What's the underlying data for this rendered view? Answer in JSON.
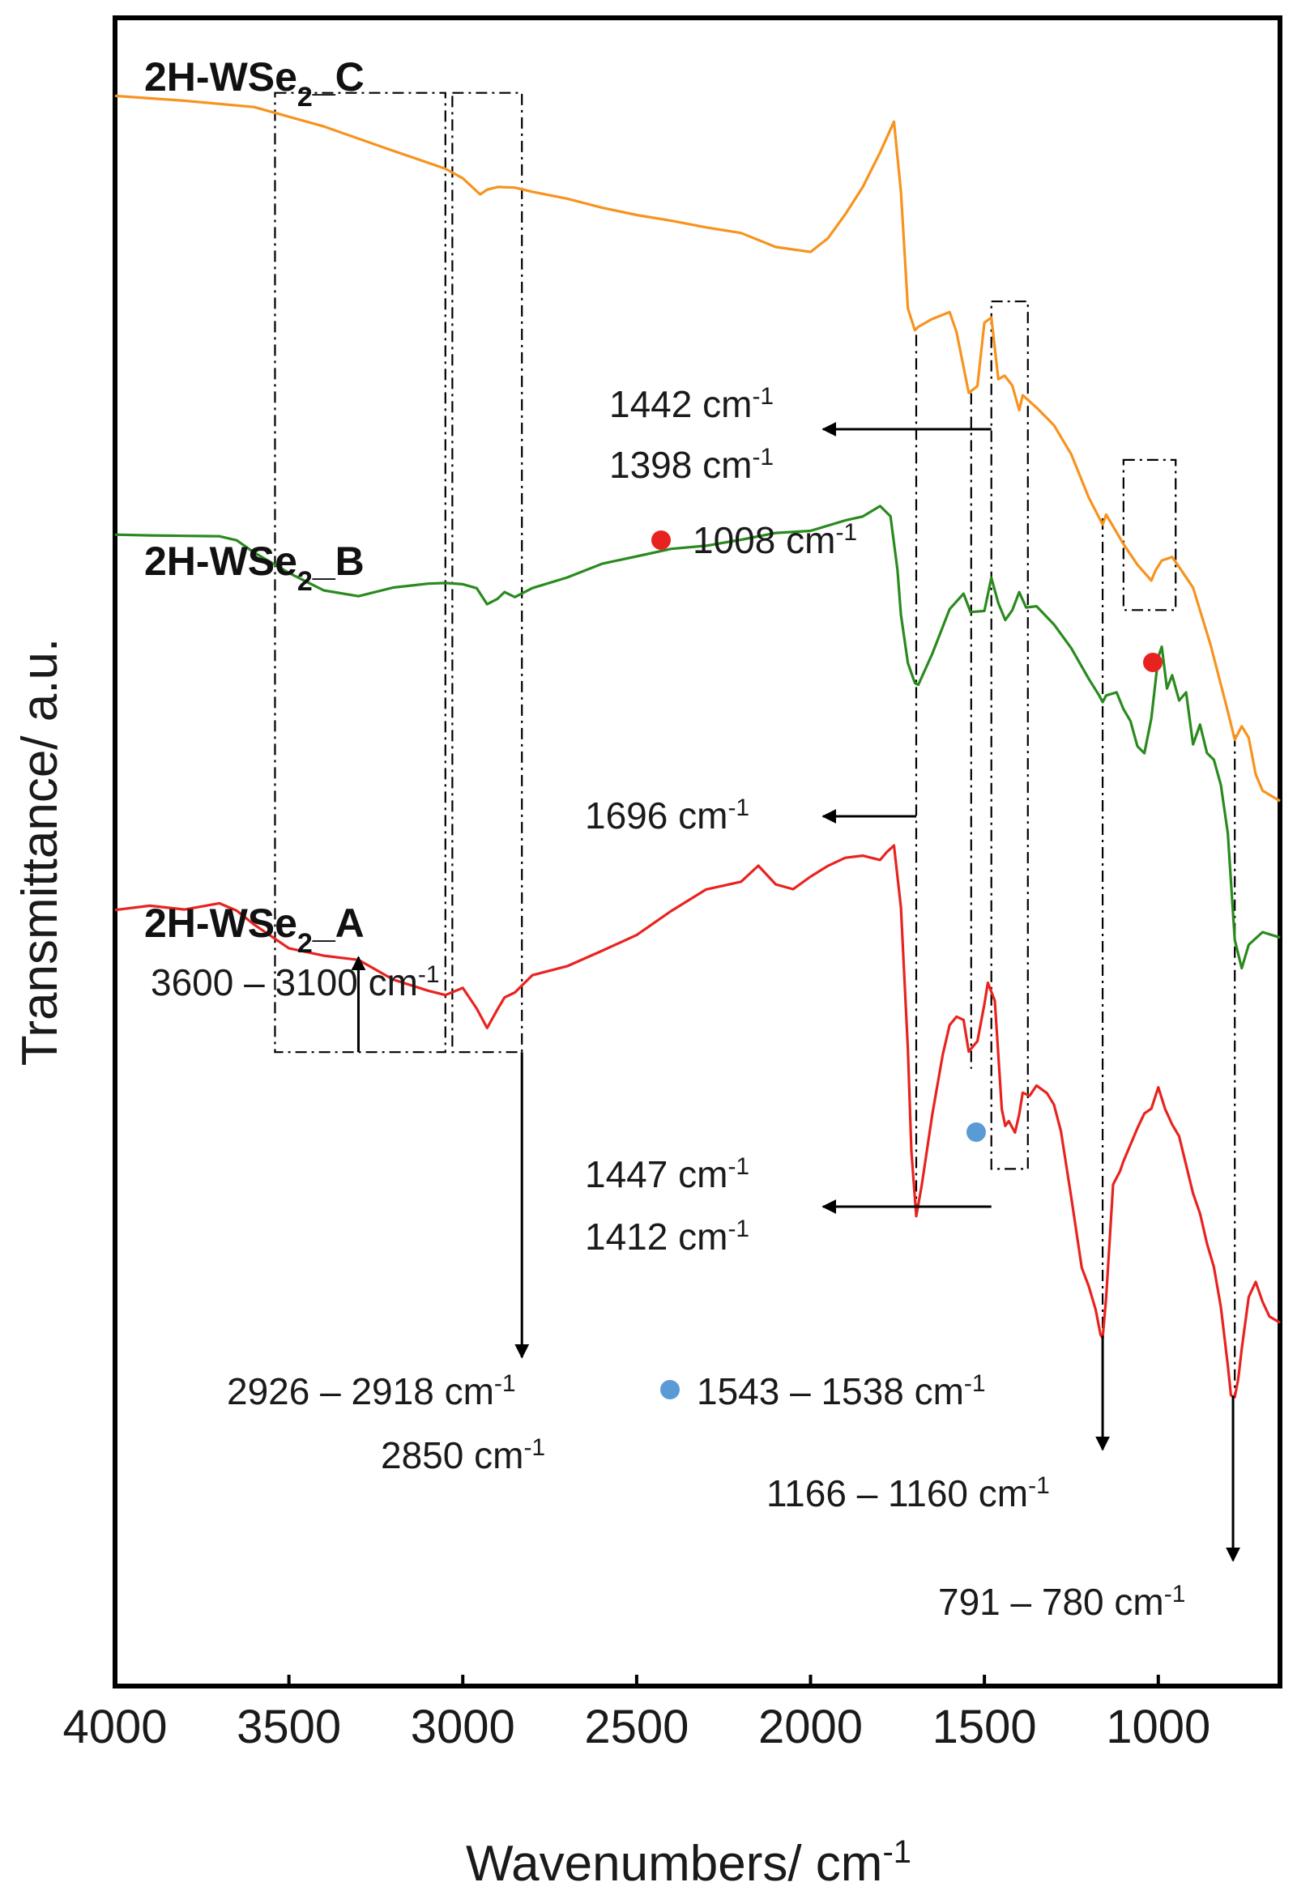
{
  "chart_data": {
    "type": "line",
    "title": "",
    "xlabel": "Wavenumbers/ cm",
    "xlabel_sup": "-1",
    "ylabel": "Transmittance/ a.u.",
    "xlim": [
      4000,
      650
    ],
    "ylim": [
      0,
      100
    ],
    "x_ticks": [
      4000,
      3500,
      3000,
      2500,
      2000,
      1500,
      1000
    ],
    "x_tick_labels": [
      "4000",
      "3500",
      "3000",
      "2500",
      "2000",
      "1500",
      "1000"
    ],
    "grid": false,
    "colors": {
      "C": "#f7931e",
      "B": "#2a8a1e",
      "A": "#e8231f",
      "mark_red": "#e8231f",
      "mark_blue": "#5b9bd5",
      "axis": "#000000"
    },
    "series": [
      {
        "name": "2H-WSe2_C",
        "label_main": "2H-WSe",
        "label_sub": "2",
        "label_tail": "_C",
        "color": "#f7931e",
        "x": [
          4000,
          3800,
          3600,
          3400,
          3200,
          3050,
          3000,
          2950,
          2930,
          2900,
          2850,
          2800,
          2700,
          2600,
          2500,
          2400,
          2300,
          2200,
          2100,
          2000,
          1950,
          1900,
          1850,
          1800,
          1760,
          1740,
          1720,
          1700,
          1690,
          1650,
          1600,
          1580,
          1545,
          1520,
          1500,
          1480,
          1460,
          1442,
          1420,
          1400,
          1390,
          1350,
          1300,
          1250,
          1200,
          1160,
          1150,
          1100,
          1060,
          1020,
          1008,
          990,
          960,
          940,
          900,
          850,
          800,
          780,
          760,
          740,
          720,
          700,
          650
        ],
        "y": [
          95.4,
          95.1,
          94.7,
          93.5,
          92.0,
          90.9,
          90.3,
          89.4,
          89.7,
          89.9,
          89.9,
          89.6,
          89.1,
          88.7,
          88.1,
          87.9,
          87.4,
          87.1,
          86.3,
          85.9,
          86.8,
          88.3,
          89.9,
          91.9,
          93.7,
          89.5,
          82.5,
          81.2,
          81.4,
          81.9,
          82.4,
          81.2,
          77.6,
          78.0,
          81.8,
          82.1,
          78.4,
          78.6,
          78.0,
          76.5,
          77.4,
          76.6,
          75.5,
          73.8,
          71.3,
          69.7,
          70.3,
          68.5,
          67.2,
          66.2,
          66.8,
          67.4,
          67.6,
          67.0,
          65.8,
          62.5,
          58.5,
          56.8,
          57.6,
          56.9,
          54.7,
          53.7,
          53.0
        ]
      },
      {
        "name": "2H-WSe2_B",
        "label_main": "2H-WSe",
        "label_sub": "2",
        "label_tail": "_B",
        "color": "#2a8a1e",
        "x": [
          4000,
          3900,
          3800,
          3700,
          3650,
          3600,
          3500,
          3400,
          3300,
          3200,
          3100,
          3050,
          3000,
          2960,
          2930,
          2900,
          2880,
          2850,
          2800,
          2700,
          2600,
          2500,
          2400,
          2300,
          2200,
          2100,
          2000,
          1900,
          1850,
          1800,
          1770,
          1750,
          1740,
          1720,
          1700,
          1690,
          1650,
          1600,
          1560,
          1540,
          1500,
          1480,
          1460,
          1440,
          1420,
          1400,
          1380,
          1350,
          1300,
          1250,
          1200,
          1170,
          1160,
          1150,
          1120,
          1100,
          1080,
          1060,
          1040,
          1020,
          1000,
          990,
          975,
          960,
          940,
          920,
          900,
          880,
          860,
          840,
          820,
          800,
          780,
          760,
          740,
          700,
          650
        ],
        "y": [
          69.1,
          68.9,
          69.0,
          68.9,
          68.6,
          67.9,
          66.8,
          65.6,
          65.4,
          65.8,
          66.1,
          66.2,
          66.1,
          65.8,
          64.8,
          65.1,
          65.5,
          65.2,
          65.8,
          66.5,
          67.2,
          67.8,
          68.1,
          68.4,
          68.7,
          69.1,
          69.3,
          69.8,
          70.1,
          70.8,
          70.2,
          67.0,
          64.3,
          61.4,
          60.2,
          60.1,
          61.9,
          64.5,
          65.4,
          64.3,
          64.4,
          66.4,
          64.9,
          63.9,
          64.5,
          65.6,
          64.7,
          64.8,
          63.7,
          62.2,
          60.3,
          59.3,
          58.9,
          59.3,
          59.5,
          58.5,
          57.8,
          56.3,
          55.9,
          58.0,
          61.7,
          62.3,
          59.8,
          60.6,
          59.1,
          59.6,
          56.5,
          57.7,
          56.0,
          55.6,
          54.1,
          51.2,
          44.8,
          43.1,
          44.5,
          45.2,
          44.8
        ]
      },
      {
        "name": "2H-WSe2_A",
        "label_main": "2H-WSe",
        "label_sub": "2",
        "label_tail": "_A",
        "color": "#e8231f",
        "x": [
          4000,
          3900,
          3800,
          3700,
          3650,
          3600,
          3500,
          3400,
          3300,
          3200,
          3100,
          3050,
          3000,
          2960,
          2930,
          2900,
          2880,
          2850,
          2800,
          2700,
          2600,
          2500,
          2400,
          2300,
          2200,
          2150,
          2100,
          2050,
          2000,
          1950,
          1900,
          1850,
          1800,
          1780,
          1760,
          1740,
          1720,
          1710,
          1696,
          1680,
          1650,
          1620,
          1600,
          1580,
          1560,
          1545,
          1520,
          1500,
          1490,
          1470,
          1450,
          1440,
          1430,
          1412,
          1400,
          1390,
          1370,
          1350,
          1320,
          1300,
          1280,
          1250,
          1220,
          1200,
          1180,
          1166,
          1160,
          1150,
          1130,
          1110,
          1100,
          1080,
          1060,
          1040,
          1020,
          1000,
          980,
          960,
          940,
          920,
          900,
          880,
          860,
          840,
          820,
          800,
          791,
          780,
          770,
          760,
          740,
          720,
          700,
          680,
          650
        ],
        "y": [
          46.6,
          46.7,
          46.6,
          46.9,
          46.4,
          45.6,
          44.3,
          43.7,
          43.6,
          42.3,
          41.7,
          41.5,
          41.9,
          40.6,
          39.4,
          40.5,
          41.2,
          41.5,
          42.6,
          43.2,
          44.0,
          45.1,
          46.4,
          47.8,
          48.2,
          49.1,
          48.0,
          47.8,
          48.6,
          49.2,
          49.6,
          49.7,
          49.5,
          50.0,
          50.4,
          46.7,
          38.2,
          32.1,
          28.2,
          30.1,
          34.3,
          37.9,
          39.7,
          40.2,
          40.0,
          38.1,
          38.7,
          40.9,
          42.2,
          41.1,
          34.6,
          33.6,
          33.9,
          33.2,
          34.3,
          35.6,
          35.4,
          36.0,
          35.5,
          34.8,
          33.2,
          29.2,
          25.0,
          23.9,
          22.5,
          21.0,
          20.8,
          23.2,
          30.0,
          30.8,
          31.4,
          32.4,
          33.4,
          34.3,
          34.6,
          35.9,
          34.6,
          33.7,
          33.0,
          31.3,
          29.6,
          28.4,
          26.6,
          25.2,
          22.8,
          19.3,
          17.5,
          17.4,
          18.5,
          20.3,
          23.4,
          24.3,
          23.1,
          22.2,
          21.8
        ]
      }
    ],
    "annotations": [
      {
        "id": "a3600",
        "text": "3600 – 3100 cm",
        "sup": "-1",
        "marker": ""
      },
      {
        "id": "a2926",
        "text": "2926 – 2918 cm",
        "sup": "-1",
        "marker": ""
      },
      {
        "id": "a2850",
        "text": "2850 cm",
        "sup": "-1",
        "marker": ""
      },
      {
        "id": "a1442",
        "text": "1442 cm",
        "sup": "-1",
        "marker": ""
      },
      {
        "id": "a1398",
        "text": "1398 cm",
        "sup": "-1",
        "marker": ""
      },
      {
        "id": "a1008",
        "text": "1008 cm",
        "sup": "-1",
        "marker": "red"
      },
      {
        "id": "a1696",
        "text": "1696 cm",
        "sup": "-1",
        "marker": ""
      },
      {
        "id": "a1447",
        "text": "1447 cm",
        "sup": "-1",
        "marker": ""
      },
      {
        "id": "a1412",
        "text": "1412 cm",
        "sup": "-1",
        "marker": ""
      },
      {
        "id": "a1543",
        "text": "1543 – 1538 cm",
        "sup": "-1",
        "marker": "blue"
      },
      {
        "id": "a1166",
        "text": "1166 – 1160 cm",
        "sup": "-1",
        "marker": ""
      },
      {
        "id": "a791",
        "text": "791 – 780 cm",
        "sup": "-1",
        "marker": ""
      }
    ],
    "highlight_regions": [
      {
        "id": "r3600",
        "x_range": [
          3540,
          3050
        ],
        "y_range": [
          38,
          95.5
        ]
      },
      {
        "id": "r2926",
        "x_range": [
          3030,
          2830
        ],
        "y_range": [
          38,
          95.5
        ]
      },
      {
        "id": "r1447",
        "x_range": [
          1480,
          1375
        ],
        "y_range": [
          31,
          83
        ]
      },
      {
        "id": "r1008",
        "x_range": [
          1100,
          950
        ],
        "y_range": [
          64.5,
          73.5
        ]
      }
    ],
    "guide_lines": [
      {
        "id": "g1696",
        "x": 1696,
        "y_range": [
          28,
          81
        ]
      },
      {
        "id": "g1538",
        "x": 1538,
        "y_range": [
          37,
          77.5
        ]
      },
      {
        "id": "g1160",
        "x": 1160,
        "y_range": [
          21,
          70
        ]
      },
      {
        "id": "g780",
        "x": 780,
        "y_range": [
          17.4,
          57
        ]
      }
    ]
  }
}
